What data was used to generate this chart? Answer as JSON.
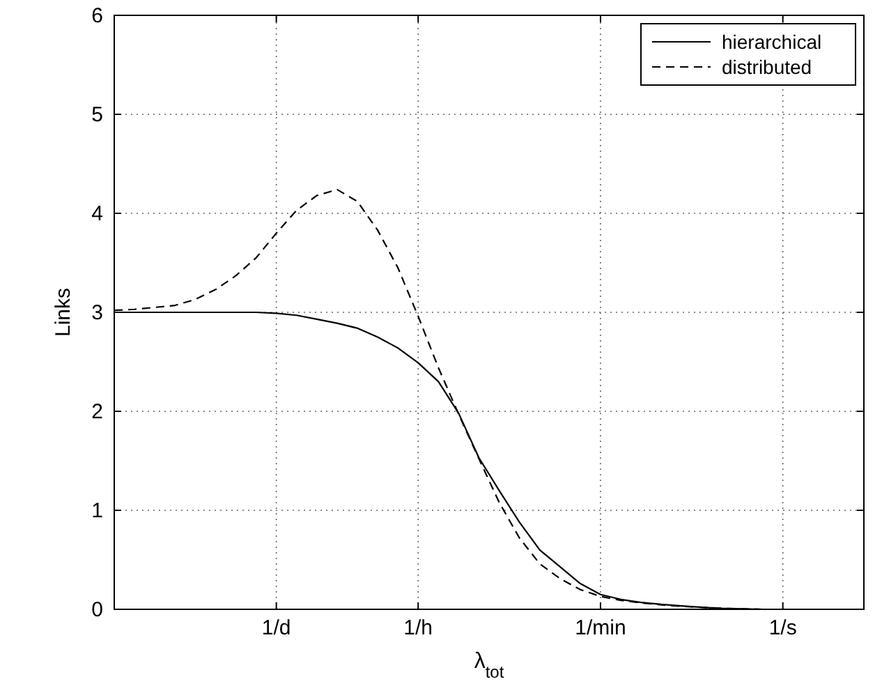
{
  "chart_data": {
    "type": "line",
    "xlabel": "λ$_{tot}$",
    "ylabel": "Links",
    "ylim": [
      0,
      6
    ],
    "categories": [
      null,
      null,
      null,
      null,
      null,
      null,
      null,
      null,
      "1/d",
      null,
      null,
      null,
      null,
      null,
      null,
      "1/h",
      null,
      null,
      null,
      null,
      null,
      null,
      null,
      null,
      "1/min",
      null,
      null,
      null,
      null,
      null,
      null,
      null,
      null,
      "1/s",
      null,
      null,
      null,
      null
    ],
    "yticks": [
      0,
      1,
      2,
      3,
      4,
      5,
      6
    ],
    "grid": true,
    "legend": "top right",
    "series": [
      {
        "name": "hierarchical",
        "color": "#000000",
        "line_style": "solid",
        "values": [
          3,
          3,
          3,
          3,
          3,
          3,
          3,
          3,
          2.99,
          2.97,
          2.93,
          2.89,
          2.84,
          2.75,
          2.64,
          2.49,
          2.3,
          1.98,
          1.53,
          1.2,
          0.88,
          0.6,
          0.43,
          0.26,
          0.15,
          0.1,
          0.07,
          0.05,
          0.035,
          0.02,
          0.01,
          0.005,
          0,
          0,
          0,
          0,
          0,
          0
        ]
      },
      {
        "name": "distributed",
        "color": "#000000",
        "line_style": "dashed",
        "values": [
          3.02,
          3.03,
          3.05,
          3.07,
          3.13,
          3.23,
          3.37,
          3.55,
          3.8,
          4.03,
          4.18,
          4.24,
          4.12,
          3.83,
          3.45,
          2.96,
          2.44,
          1.97,
          1.52,
          1.08,
          0.72,
          0.46,
          0.31,
          0.2,
          0.13,
          0.09,
          0.065,
          0.045,
          0.03,
          0.02,
          0.01,
          0.005,
          0,
          0,
          0,
          0,
          0,
          0
        ]
      }
    ]
  }
}
